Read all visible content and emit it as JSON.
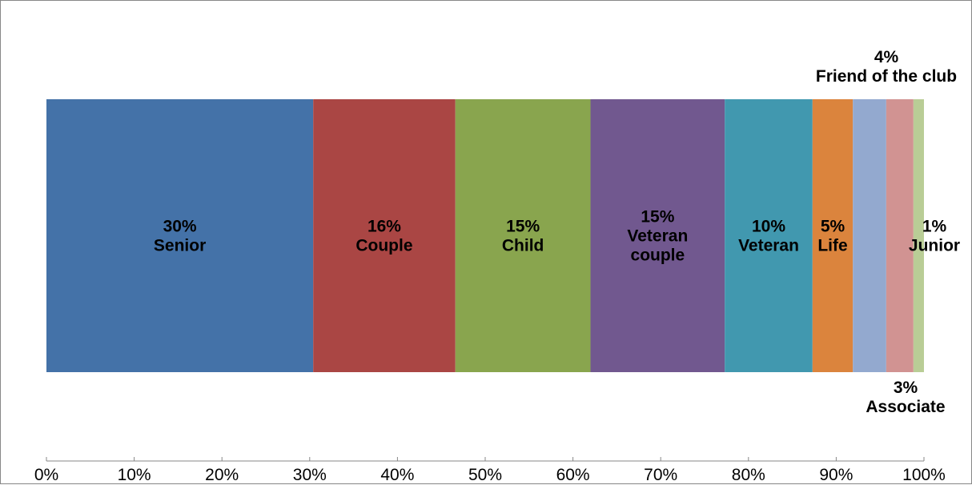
{
  "chart_data": {
    "type": "bar",
    "orientation": "horizontal",
    "stacked": true,
    "normalized": true,
    "title": "",
    "xlabel": "",
    "ylabel": "",
    "xlim": [
      0,
      100
    ],
    "x_ticks": [
      "0%",
      "10%",
      "20%",
      "30%",
      "40%",
      "50%",
      "60%",
      "70%",
      "80%",
      "90%",
      "100%"
    ],
    "grid": false,
    "legend": "none",
    "series": [
      {
        "name": "Senior",
        "value": 30.4,
        "value_label": "30%",
        "label_lines": [
          "30%",
          "Senior"
        ],
        "color": "#4472a8"
      },
      {
        "name": "Couple",
        "value": 16.2,
        "value_label": "16%",
        "label_lines": [
          "16%",
          "Couple"
        ],
        "color": "#aa4644"
      },
      {
        "name": "Child",
        "value": 15.4,
        "value_label": "15%",
        "label_lines": [
          "15%",
          "Child"
        ],
        "color": "#89a54e"
      },
      {
        "name": "Veteran couple",
        "value": 15.3,
        "value_label": "15%",
        "label_lines": [
          "15%",
          "Veteran",
          "couple"
        ],
        "color": "#71588f"
      },
      {
        "name": "Veteran",
        "value": 10.0,
        "value_label": "10%",
        "label_lines": [
          "10%",
          "Veteran"
        ],
        "color": "#4198af"
      },
      {
        "name": "Life",
        "value": 4.6,
        "value_label": "5%",
        "label_lines": [
          "5%",
          "Life"
        ],
        "color": "#db843d"
      },
      {
        "name": "Friend of the club",
        "value": 3.8,
        "value_label": "4%",
        "label_lines": [
          "4%",
          "Friend of the club"
        ],
        "color": "#93a9cf",
        "label_position": "above"
      },
      {
        "name": "Associate",
        "value": 3.1,
        "value_label": "3%",
        "label_lines": [
          "3%",
          "Associate"
        ],
        "color": "#d19392",
        "label_position": "below"
      },
      {
        "name": "Junior",
        "value": 1.2,
        "value_label": "1%",
        "label_lines": [
          "1%",
          "Junior"
        ],
        "color": "#b9cd96",
        "label_position": "right"
      }
    ]
  }
}
